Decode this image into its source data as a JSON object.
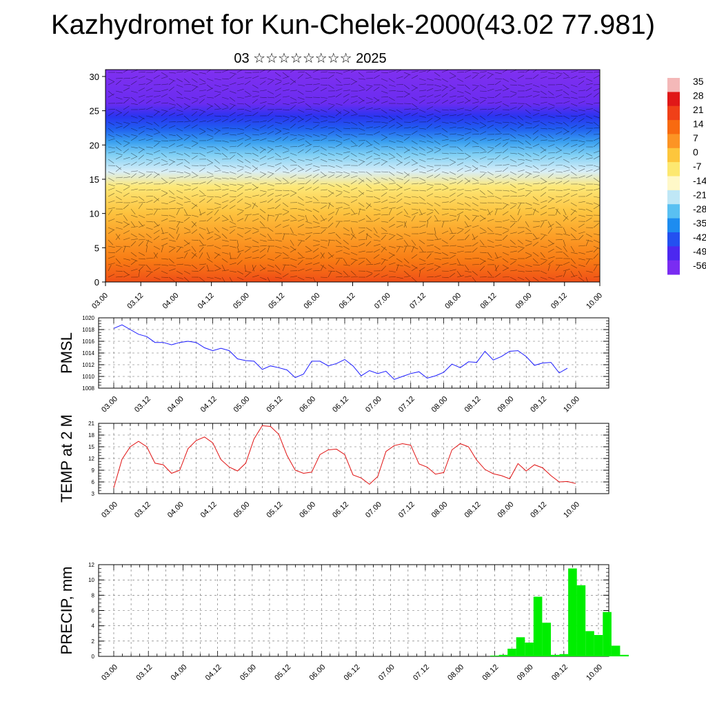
{
  "header": {
    "title": "Kazhydromet for Kun-Chelek-2000(43.02 77.981)",
    "subtitle": "03 ☆☆☆☆☆☆☆☆ 2025"
  },
  "colors": {
    "pmsl_line": "#1a1aff",
    "temp_line": "#e01010",
    "precip_bar": "#00ee00"
  },
  "chart_data": [
    {
      "type": "heatmap",
      "title": "Kazhydromet for Kun-Chelek-2000(43.02 77.981)",
      "subtitle": "03 ☆☆☆☆☆☆☆☆ 2025",
      "x_tick_labels": [
        "03.00",
        "03.12",
        "04.00",
        "04.12",
        "05.00",
        "05.12",
        "06.00",
        "06.12",
        "07.00",
        "07.12",
        "08.00",
        "08.12",
        "09.00",
        "09.12",
        "10.00"
      ],
      "y_tick_labels": [
        "0",
        "5",
        "10",
        "15",
        "20",
        "25",
        "30"
      ],
      "ylim": [
        0,
        31
      ],
      "colorbar_labels": [
        "35",
        "28",
        "21",
        "14",
        "7",
        "0",
        "-7",
        "-14",
        "-21",
        "-28",
        "-35",
        "-42",
        "-49",
        "-56"
      ],
      "colorbar_colors": [
        "#f4b8b8",
        "#e01818",
        "#f04018",
        "#f86a10",
        "#fc9424",
        "#fdc63c",
        "#fde870",
        "#fff8c8",
        "#bfe7f6",
        "#59c0f2",
        "#1d8cf0",
        "#2350f0",
        "#4c28f0",
        "#7a2cf2"
      ],
      "description_note": "",
      "layers": [
        {
          "height_km": [
            0,
            3,
            6,
            9,
            12,
            15,
            18,
            21,
            24,
            27,
            31
          ]
        }
      ]
    },
    {
      "type": "line",
      "ylabel": "PMSL",
      "ylim": [
        1008,
        1020
      ],
      "y_ticks": [
        "1008",
        "1010",
        "1012",
        "1014",
        "1016",
        "1018",
        "1020"
      ],
      "x_tick_labels": [
        "03.00",
        "03.12",
        "04.00",
        "04.12",
        "05.00",
        "05.12",
        "06.00",
        "06.12",
        "07.00",
        "07.12",
        "08.00",
        "08.12",
        "09.00",
        "09.12",
        "10.00"
      ],
      "values": [
        1018.2,
        1018.8,
        1018.0,
        1017.2,
        1016.8,
        1015.8,
        1015.8,
        1015.4,
        1015.8,
        1016.0,
        1015.8,
        1014.9,
        1014.4,
        1014.8,
        1014.4,
        1013.0,
        1012.7,
        1012.6,
        1011.2,
        1011.8,
        1011.5,
        1011.1,
        1009.8,
        1010.4,
        1012.6,
        1012.6,
        1011.8,
        1012.2,
        1012.9,
        1011.8,
        1010.1,
        1011.0,
        1010.5,
        1010.9,
        1009.5,
        1010.0,
        1010.5,
        1010.8,
        1009.7,
        1010.1,
        1010.7,
        1012.1,
        1011.5,
        1012.5,
        1012.4,
        1014.3,
        1012.8,
        1013.4,
        1014.3,
        1014.4,
        1013.4,
        1011.9,
        1012.3,
        1012.4,
        1010.6,
        1011.4
      ],
      "x_step_hours": 3
    },
    {
      "type": "line",
      "ylabel": "TEMP at 2 M",
      "ylim": [
        3,
        21
      ],
      "y_ticks": [
        "3",
        "6",
        "9",
        "12",
        "15",
        "18",
        "21"
      ],
      "x_tick_labels": [
        "03.00",
        "03.12",
        "04.00",
        "04.12",
        "05.00",
        "05.12",
        "06.00",
        "06.12",
        "07.00",
        "07.12",
        "08.00",
        "08.12",
        "09.00",
        "09.12",
        "10.00"
      ],
      "values": [
        4.5,
        11.8,
        15.0,
        16.4,
        15.0,
        10.8,
        10.4,
        8.2,
        9.0,
        14.5,
        16.6,
        17.5,
        16.0,
        11.7,
        9.8,
        8.8,
        10.8,
        17.0,
        20.4,
        20.2,
        18.2,
        12.8,
        9.0,
        8.2,
        8.5,
        13.0,
        14.2,
        14.4,
        13.0,
        7.8,
        7.0,
        5.4,
        7.4,
        13.8,
        15.3,
        15.8,
        15.4,
        10.6,
        9.8,
        8.0,
        8.4,
        14.2,
        15.8,
        15.0,
        11.6,
        9.2,
        8.1,
        7.6,
        6.8,
        10.7,
        8.8,
        10.4,
        9.6,
        7.6,
        6.0,
        6.1,
        5.6
      ],
      "x_step_hours": 3
    },
    {
      "type": "bar",
      "ylabel": "PRECIP, mm",
      "ylim": [
        0,
        12
      ],
      "y_ticks": [
        "0",
        "2",
        "4",
        "6",
        "8",
        "10",
        "12"
      ],
      "x_tick_labels": [
        "03.00",
        "03.12",
        "04.00",
        "04.12",
        "05.00",
        "05.12",
        "06.00",
        "06.12",
        "07.00",
        "07.12",
        "08.00",
        "08.12",
        "09.00",
        "09.12",
        "10.00"
      ],
      "values": [
        0,
        0,
        0,
        0,
        0,
        0,
        0,
        0,
        0,
        0,
        0,
        0,
        0,
        0,
        0,
        0,
        0,
        0,
        0,
        0,
        0,
        0,
        0,
        0,
        0,
        0,
        0,
        0,
        0,
        0,
        0,
        0,
        0,
        0,
        0,
        0,
        0,
        0,
        0,
        0,
        0,
        0,
        0,
        0,
        0.1,
        0.2,
        1.0,
        2.5,
        1.8,
        7.8,
        4.4,
        0.2,
        0.3,
        11.5,
        9.3,
        3.3,
        2.8,
        5.8,
        1.4,
        0.2
      ],
      "x_step_hours": 3
    }
  ]
}
